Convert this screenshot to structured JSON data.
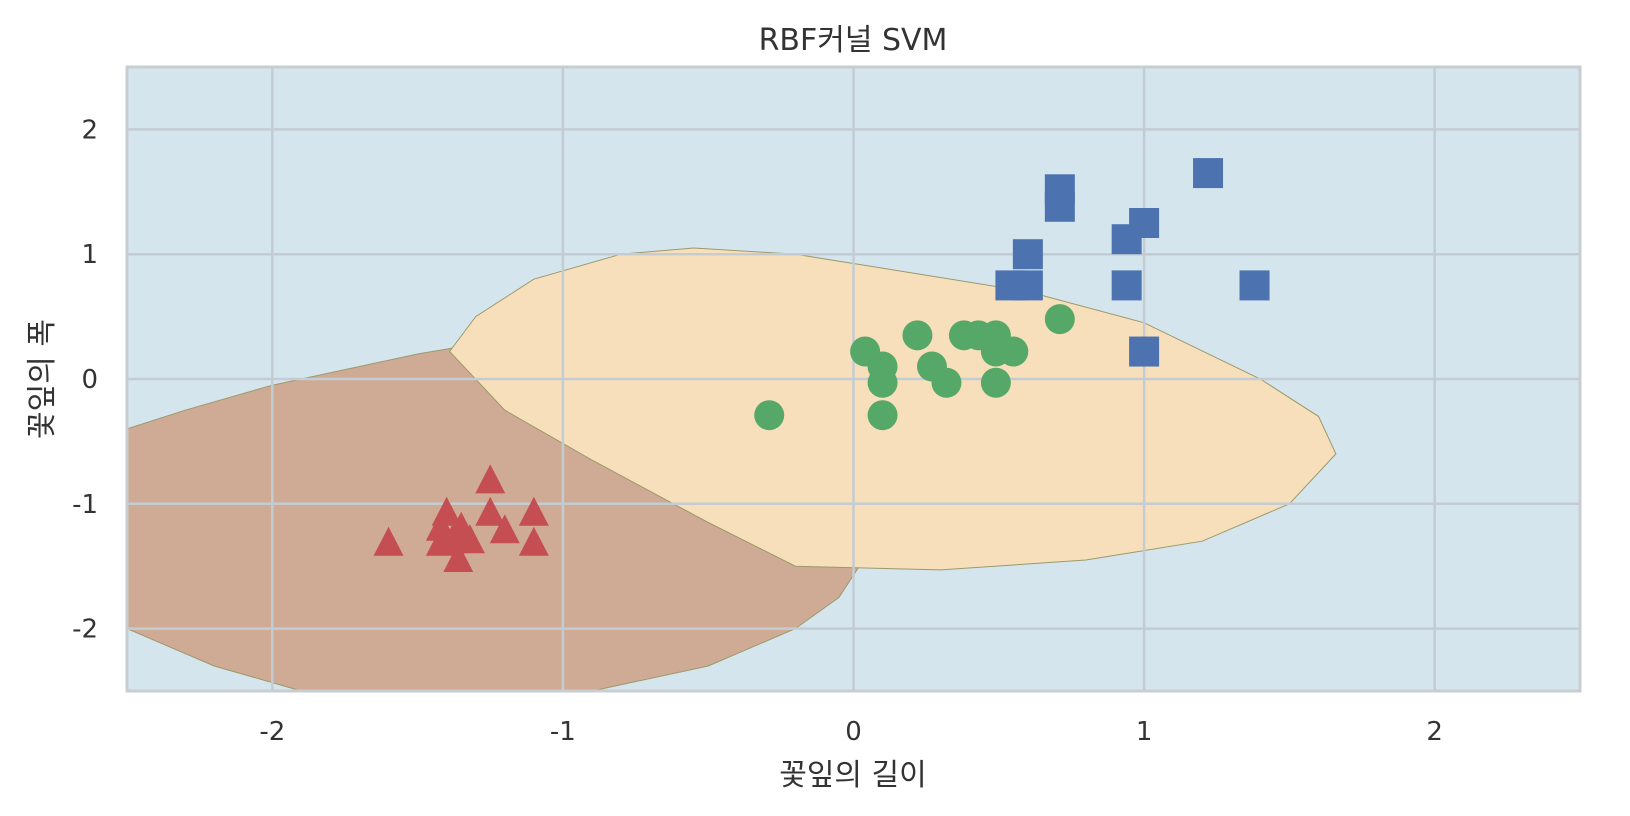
{
  "chart_data": {
    "type": "scatter",
    "title": "RBF커널 SVM",
    "xlabel": "꽃잎의 길이",
    "ylabel": "꽃잎의 폭",
    "xlim": [
      -2.5,
      2.5
    ],
    "ylim": [
      -2.5,
      2.5
    ],
    "xticks": [
      -2,
      -1,
      0,
      1,
      2
    ],
    "yticks": [
      2,
      1,
      0,
      -1,
      -2
    ],
    "x_tick_labels": [
      "-2",
      "-1",
      "0",
      "1",
      "2"
    ],
    "y_tick_labels": [
      "2",
      "1",
      "0",
      "-1",
      "-2"
    ],
    "grid": true,
    "background_color": "#d5e5ee",
    "regions": [
      {
        "color": "#cfab95",
        "boundary": [
          [
            -2.5,
            -0.4
          ],
          [
            -2.3,
            -0.25
          ],
          [
            -2.0,
            -0.05
          ],
          [
            -1.7,
            0.1
          ],
          [
            -1.5,
            0.2
          ],
          [
            -1.3,
            0.28
          ],
          [
            -1.15,
            0.3
          ],
          [
            -1.0,
            0.2
          ],
          [
            -0.7,
            0.0
          ],
          [
            -0.4,
            -0.22
          ],
          [
            -0.15,
            -0.5
          ],
          [
            0.0,
            -0.8
          ],
          [
            0.05,
            -1.1
          ],
          [
            0.02,
            -1.5
          ],
          [
            -0.05,
            -1.75
          ],
          [
            -0.2,
            -2.0
          ],
          [
            -0.5,
            -2.3
          ],
          [
            -0.9,
            -2.5
          ],
          [
            -1.9,
            -2.5
          ],
          [
            -2.2,
            -2.3
          ],
          [
            -2.5,
            -2.0
          ]
        ]
      },
      {
        "color": "#f8dfbb",
        "boundary": [
          [
            -1.39,
            0.22
          ],
          [
            -1.3,
            0.5
          ],
          [
            -1.1,
            0.8
          ],
          [
            -0.8,
            1.0
          ],
          [
            -0.55,
            1.05
          ],
          [
            -0.2,
            1.0
          ],
          [
            0.2,
            0.85
          ],
          [
            0.6,
            0.7
          ],
          [
            1.0,
            0.45
          ],
          [
            1.4,
            0.0
          ],
          [
            1.6,
            -0.3
          ],
          [
            1.66,
            -0.6
          ],
          [
            1.5,
            -1.0
          ],
          [
            1.2,
            -1.3
          ],
          [
            0.8,
            -1.45
          ],
          [
            0.3,
            -1.53
          ],
          [
            -0.2,
            -1.5
          ],
          [
            -0.5,
            -1.15
          ],
          [
            -0.9,
            -0.65
          ],
          [
            -1.2,
            -0.25
          ],
          [
            -1.39,
            0.22
          ]
        ]
      }
    ],
    "series": [
      {
        "marker": "triangle",
        "color": "#c44e52",
        "points": [
          [
            -1.25,
            -0.82
          ],
          [
            -1.4,
            -1.08
          ],
          [
            -1.1,
            -1.08
          ],
          [
            -1.25,
            -1.08
          ],
          [
            -1.35,
            -1.2
          ],
          [
            -1.42,
            -1.2
          ],
          [
            -1.2,
            -1.22
          ],
          [
            -1.38,
            -1.3
          ],
          [
            -1.32,
            -1.3
          ],
          [
            -1.6,
            -1.32
          ],
          [
            -1.1,
            -1.32
          ],
          [
            -1.42,
            -1.32
          ],
          [
            -1.36,
            -1.45
          ]
        ]
      },
      {
        "marker": "circle",
        "color": "#55a868",
        "points": [
          [
            0.71,
            0.48
          ],
          [
            0.22,
            0.35
          ],
          [
            0.38,
            0.35
          ],
          [
            0.43,
            0.35
          ],
          [
            0.49,
            0.35
          ],
          [
            0.04,
            0.22
          ],
          [
            0.49,
            0.22
          ],
          [
            0.55,
            0.22
          ],
          [
            0.1,
            0.1
          ],
          [
            0.27,
            0.1
          ],
          [
            0.1,
            -0.03
          ],
          [
            0.32,
            -0.03
          ],
          [
            0.49,
            -0.03
          ],
          [
            -0.29,
            -0.29
          ],
          [
            0.1,
            -0.29
          ]
        ]
      },
      {
        "marker": "square",
        "color": "#4c72b0",
        "points": [
          [
            1.22,
            1.65
          ],
          [
            0.71,
            1.52
          ],
          [
            0.71,
            1.38
          ],
          [
            1.0,
            1.25
          ],
          [
            0.94,
            1.12
          ],
          [
            0.6,
            1.0
          ],
          [
            0.54,
            0.75
          ],
          [
            0.6,
            0.75
          ],
          [
            0.94,
            0.75
          ],
          [
            1.38,
            0.75
          ],
          [
            1.0,
            0.22
          ]
        ]
      }
    ]
  }
}
